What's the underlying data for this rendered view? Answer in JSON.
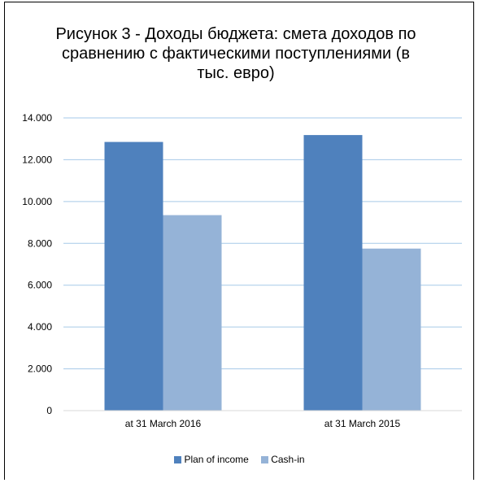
{
  "chart_data": {
    "type": "bar",
    "title_lines": [
      "Рисунок 3 - Доходы бюджета: смета доходов по",
      "сравнению с фактическими поступлениями (в",
      "тыс. евро)"
    ],
    "categories": [
      "at 31 March 2016",
      "at 31 March 2015"
    ],
    "series": [
      {
        "name": "Plan of income",
        "values": [
          12850,
          13180
        ],
        "color": "#4F81BD"
      },
      {
        "name": "Cash-in",
        "values": [
          9350,
          7750
        ],
        "color": "#95B3D7"
      }
    ],
    "ylim": [
      0,
      14000
    ],
    "yticks": [
      {
        "value": 0,
        "label": "0"
      },
      {
        "value": 2000,
        "label": "2.000"
      },
      {
        "value": 4000,
        "label": "4.000"
      },
      {
        "value": 6000,
        "label": "6.000"
      },
      {
        "value": 8000,
        "label": "8.000"
      },
      {
        "value": 10000,
        "label": "10.000"
      },
      {
        "value": 12000,
        "label": "12.000"
      },
      {
        "value": 14000,
        "label": "14.000"
      }
    ],
    "grid": true,
    "gridline_color": "#A6CAE8",
    "legend_position": "bottom"
  }
}
